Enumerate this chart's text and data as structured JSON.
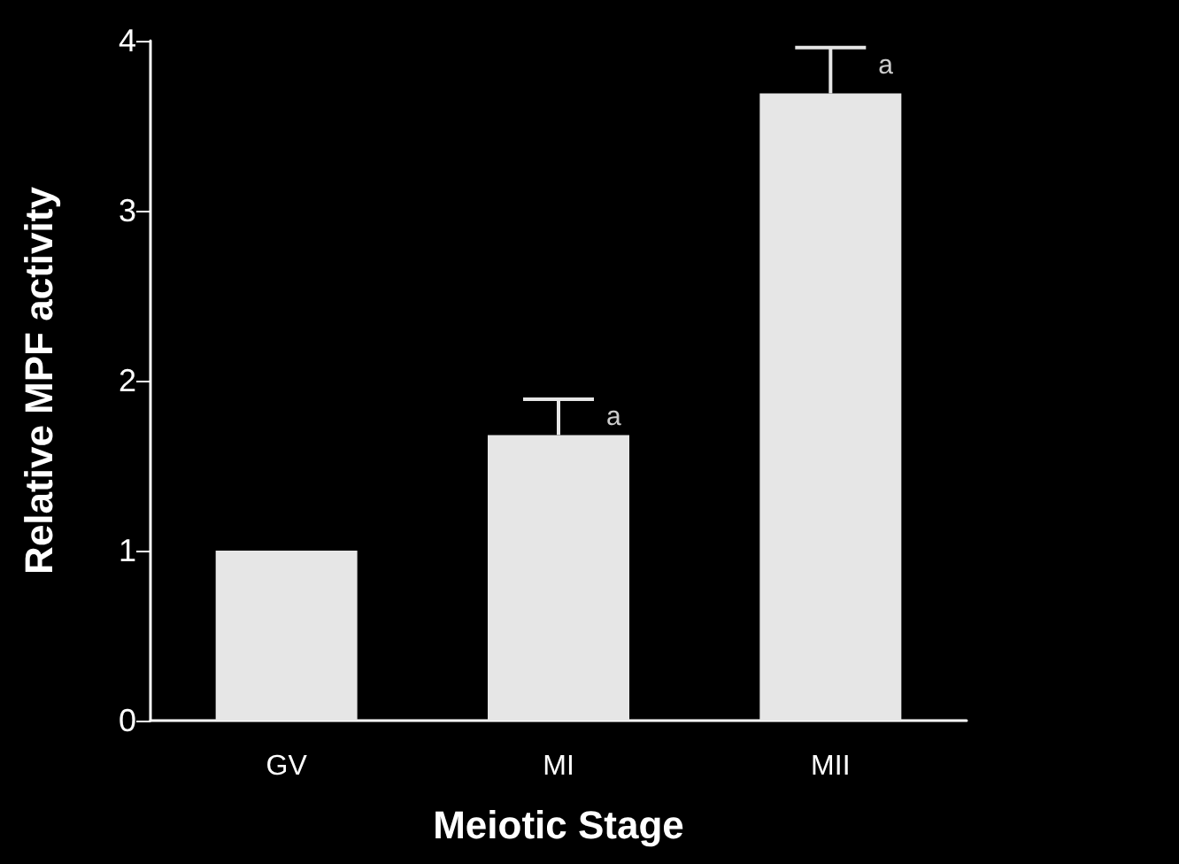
{
  "chart_data": {
    "type": "bar",
    "xlabel": "Meiotic Stage",
    "ylabel": "Relative MPF activity",
    "categories": [
      "GV",
      "MI",
      "MII"
    ],
    "values": [
      1.0,
      1.68,
      3.69
    ],
    "color": "#e6e6e6",
    "errors": [
      null,
      [
        1.68,
        1.89
      ],
      [
        3.69,
        3.96
      ]
    ],
    "annotations": [
      {
        "text": "a",
        "x": "MI",
        "y": 1.89
      },
      {
        "text": "a",
        "x": "MII",
        "y": 3.96
      }
    ],
    "ylim": [
      0,
      4
    ],
    "yticks": [
      0,
      1,
      2,
      3,
      4
    ],
    "grid": false
  }
}
